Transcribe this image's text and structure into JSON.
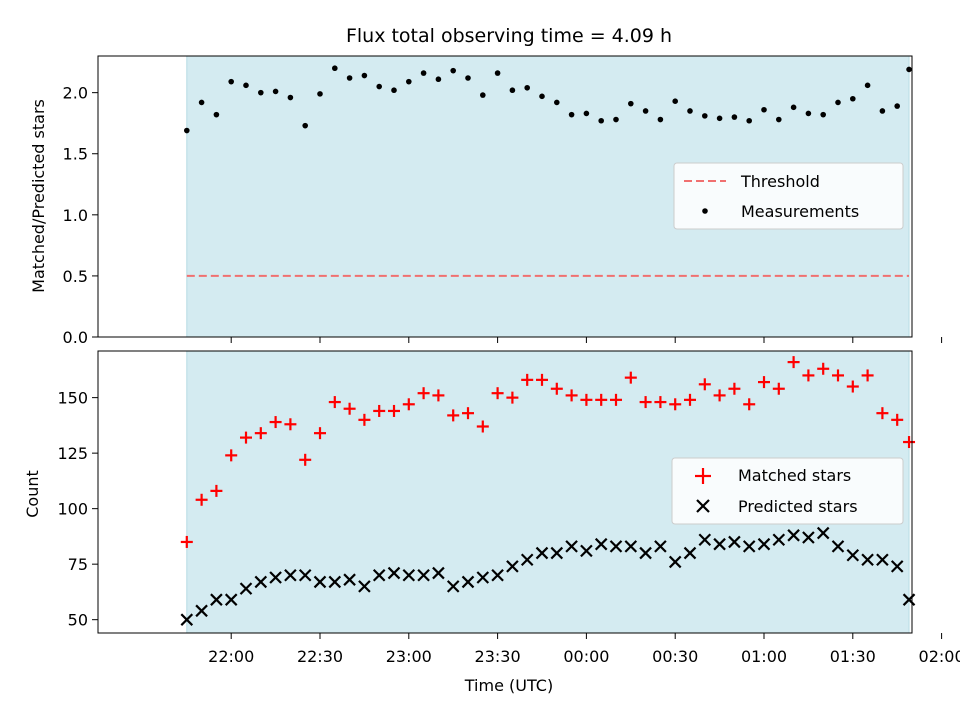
{
  "chart_data": [
    {
      "type": "scatter",
      "title": "Flux total observing time = 4.09 h",
      "ylabel": "Matched/Predicted stars",
      "xlabel": "",
      "x_unit": "minutes since 21:30 UTC",
      "xlim": [
        -15,
        260
      ],
      "ylim": [
        0.0,
        2.3
      ],
      "yticks": [
        0.0,
        0.5,
        1.0,
        1.5,
        2.0
      ],
      "ytick_labels": [
        "0.0",
        "0.5",
        "1.0",
        "1.5",
        "2.0"
      ],
      "shaded_span": [
        15,
        259
      ],
      "shaded_color": "#d4ebf1",
      "legend_position": "center-right",
      "series": [
        {
          "name": "Threshold",
          "kind": "hline",
          "y": 0.5,
          "x_range": [
            15,
            259
          ],
          "color": "#f07070",
          "style": "dashed"
        },
        {
          "name": "Measurements",
          "kind": "dots",
          "color": "#000000",
          "x": [
            15,
            20,
            25,
            30,
            35,
            40,
            45,
            50,
            55,
            60,
            65,
            70,
            75,
            80,
            85,
            90,
            95,
            100,
            105,
            110,
            115,
            120,
            125,
            130,
            135,
            140,
            145,
            150,
            155,
            160,
            165,
            170,
            175,
            180,
            185,
            190,
            195,
            200,
            205,
            210,
            215,
            220,
            225,
            230,
            235,
            240,
            245,
            250,
            255,
            259
          ],
          "y": [
            1.69,
            1.92,
            1.82,
            2.09,
            2.06,
            2.0,
            2.01,
            1.96,
            1.73,
            1.99,
            2.2,
            2.12,
            2.14,
            2.05,
            2.02,
            2.09,
            2.16,
            2.11,
            2.18,
            2.12,
            1.98,
            2.16,
            2.02,
            2.04,
            1.97,
            1.92,
            1.82,
            1.83,
            1.77,
            1.78,
            1.91,
            1.85,
            1.78,
            1.93,
            1.85,
            1.81,
            1.79,
            1.8,
            1.77,
            1.86,
            1.78,
            1.88,
            1.83,
            1.82,
            1.92,
            1.95,
            2.06,
            1.85,
            1.89,
            2.19
          ]
        }
      ]
    },
    {
      "type": "scatter",
      "title": "",
      "ylabel": "Count",
      "xlabel": "Time (UTC)",
      "x_unit": "minutes since 21:30 UTC",
      "xlim": [
        -15,
        260
      ],
      "ylim": [
        44,
        171
      ],
      "yticks": [
        50,
        75,
        100,
        125,
        150
      ],
      "ytick_labels": [
        "50",
        "75",
        "100",
        "125",
        "150"
      ],
      "xticks": [
        30,
        60,
        90,
        120,
        150,
        180,
        210,
        240,
        270
      ],
      "xtick_labels": [
        "22:00",
        "22:30",
        "23:00",
        "23:30",
        "00:00",
        "00:30",
        "01:00",
        "01:30",
        "02:00"
      ],
      "shaded_span": [
        15,
        259
      ],
      "shaded_color": "#d4ebf1",
      "legend_position": "center-right",
      "series": [
        {
          "name": "Matched stars",
          "kind": "plus",
          "color": "#ff0000",
          "x": [
            15,
            20,
            25,
            30,
            35,
            40,
            45,
            50,
            55,
            60,
            65,
            70,
            75,
            80,
            85,
            90,
            95,
            100,
            105,
            110,
            115,
            120,
            125,
            130,
            135,
            140,
            145,
            150,
            155,
            160,
            165,
            170,
            175,
            180,
            185,
            190,
            195,
            200,
            205,
            210,
            215,
            220,
            225,
            230,
            235,
            240,
            245,
            250,
            255,
            259
          ],
          "y": [
            85,
            104,
            108,
            124,
            132,
            134,
            139,
            138,
            122,
            134,
            148,
            145,
            140,
            144,
            144,
            147,
            152,
            151,
            142,
            143,
            137,
            152,
            150,
            158,
            158,
            154,
            151,
            149,
            149,
            149,
            159,
            148,
            148,
            147,
            149,
            156,
            151,
            154,
            147,
            157,
            154,
            166,
            160,
            163,
            160,
            155,
            160,
            143,
            140,
            130
          ]
        },
        {
          "name": "Predicted stars",
          "kind": "cross",
          "color": "#000000",
          "x": [
            15,
            20,
            25,
            30,
            35,
            40,
            45,
            50,
            55,
            60,
            65,
            70,
            75,
            80,
            85,
            90,
            95,
            100,
            105,
            110,
            115,
            120,
            125,
            130,
            135,
            140,
            145,
            150,
            155,
            160,
            165,
            170,
            175,
            180,
            185,
            190,
            195,
            200,
            205,
            210,
            215,
            220,
            225,
            230,
            235,
            240,
            245,
            250,
            255,
            259
          ],
          "y": [
            50,
            54,
            59,
            59,
            64,
            67,
            69,
            70,
            70,
            67,
            67,
            68,
            65,
            70,
            71,
            70,
            70,
            71,
            65,
            67,
            69,
            70,
            74,
            77,
            80,
            80,
            83,
            81,
            84,
            83,
            83,
            80,
            83,
            76,
            80,
            86,
            84,
            85,
            83,
            84,
            86,
            88,
            87,
            89,
            83,
            79,
            77,
            77,
            74,
            59
          ]
        }
      ]
    }
  ]
}
